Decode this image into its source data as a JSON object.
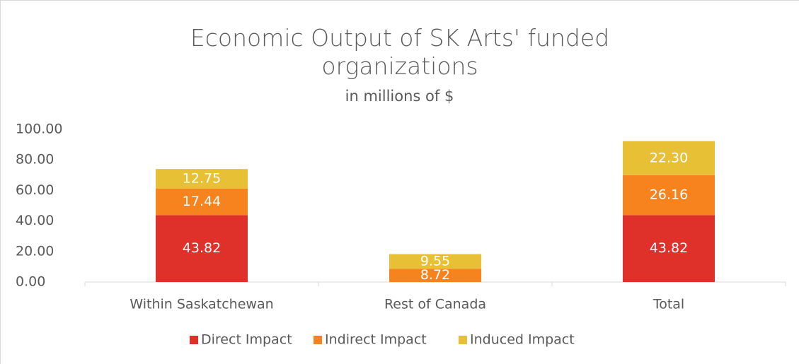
{
  "chart_data": {
    "type": "stacked_bar",
    "title": "Economic Output of SK Arts' funded organizations",
    "subtitle": "in millions of $",
    "categories": [
      "Within Saskatchewan",
      "Rest of Canada",
      "Total"
    ],
    "series": [
      {
        "name": "Direct Impact",
        "color": "#e0302a",
        "values": [
          43.82,
          0,
          43.82
        ],
        "value_labels": [
          "43.82",
          null,
          "43.82"
        ]
      },
      {
        "name": "Indirect Impact",
        "color": "#f7831f",
        "values": [
          17.44,
          8.72,
          26.16
        ]
      },
      {
        "name": "Induced Impact",
        "color": "#e8c035",
        "values": [
          12.75,
          9.55,
          22.3
        ],
        "value_labels": [
          "12.75",
          "9.55",
          "22.30"
        ]
      }
    ],
    "ylim": [
      0,
      100
    ],
    "yticks": [
      {
        "value": 0,
        "label": "0.00"
      },
      {
        "value": 20,
        "label": "20.00"
      },
      {
        "value": 40,
        "label": "40.00"
      },
      {
        "value": 60,
        "label": "60.00"
      },
      {
        "value": 80,
        "label": "80.00"
      },
      {
        "value": 100,
        "label": "100.00"
      }
    ],
    "legend": "bottom"
  }
}
